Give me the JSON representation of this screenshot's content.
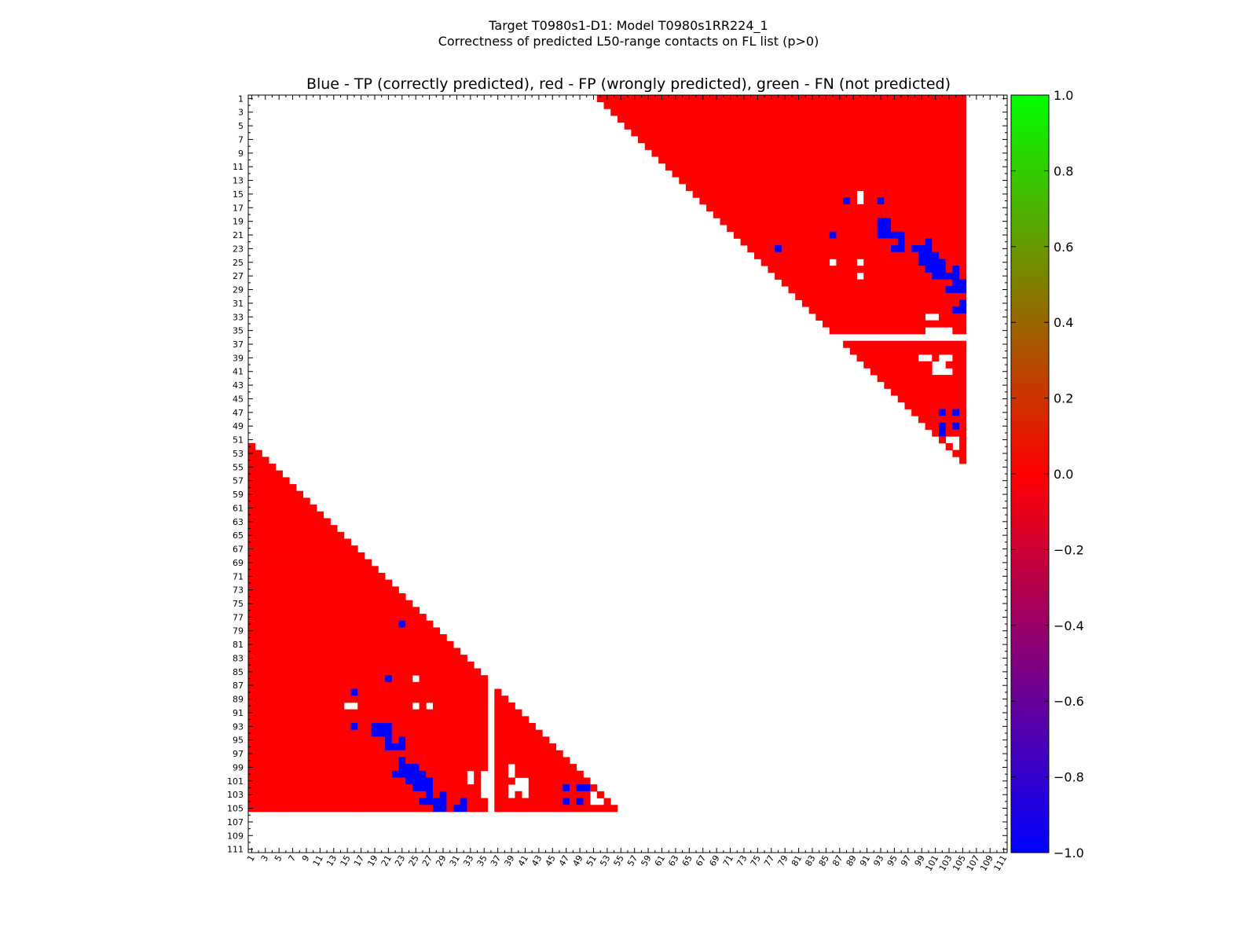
{
  "suptitle_line1": "Target T0980s1-D1: Model T0980s1RR224_1",
  "suptitle_line2": "Correctness of predicted L50-range contacts on FL list (p>0)",
  "chart_data": {
    "type": "heatmap",
    "title": "Blue - TP (correctly predicted), red - FP (wrongly predicted), green - FN (not predicted)",
    "xlabel": "",
    "ylabel": "",
    "grid": false,
    "legend": "colorbar right",
    "n_residues": 111,
    "x_ticks": [
      "1",
      "3",
      "5",
      "7",
      "9",
      "11",
      "13",
      "15",
      "17",
      "19",
      "21",
      "23",
      "25",
      "27",
      "29",
      "31",
      "33",
      "35",
      "37",
      "39",
      "41",
      "43",
      "45",
      "47",
      "49",
      "51",
      "53",
      "55",
      "57",
      "59",
      "61",
      "63",
      "65",
      "67",
      "69",
      "71",
      "73",
      "75",
      "77",
      "79",
      "81",
      "83",
      "85",
      "87",
      "89",
      "91",
      "93",
      "95",
      "97",
      "99",
      "101",
      "103",
      "105",
      "107",
      "109",
      "111"
    ],
    "y_ticks": [
      "1",
      "3",
      "5",
      "7",
      "9",
      "11",
      "13",
      "15",
      "17",
      "19",
      "21",
      "23",
      "25",
      "27",
      "29",
      "31",
      "33",
      "35",
      "37",
      "39",
      "41",
      "43",
      "45",
      "47",
      "49",
      "51",
      "53",
      "55",
      "57",
      "59",
      "61",
      "63",
      "65",
      "67",
      "69",
      "71",
      "73",
      "75",
      "77",
      "79",
      "81",
      "83",
      "85",
      "87",
      "89",
      "91",
      "93",
      "95",
      "97",
      "99",
      "101",
      "103",
      "105",
      "107",
      "109",
      "111"
    ],
    "colorbar": {
      "min": -1.0,
      "max": 1.0,
      "ticks": [
        "1.0",
        "0.8",
        "0.6",
        "0.4",
        "0.2",
        "0.0",
        "−0.2",
        "−0.4",
        "−0.6",
        "−0.8",
        "−1.0"
      ],
      "colors": {
        "tp": "#0000ff",
        "fp": "#ff0000",
        "fn": "#00ff00"
      }
    },
    "predicted_region": {
      "min_separation": 51,
      "max_residue": 105,
      "missing_residue": 36
    },
    "tp_contacts": [
      [
        16,
        88
      ],
      [
        16,
        93
      ],
      [
        21,
        86
      ],
      [
        19,
        93
      ],
      [
        19,
        94
      ],
      [
        20,
        93
      ],
      [
        20,
        94
      ],
      [
        21,
        93
      ],
      [
        21,
        94
      ],
      [
        21,
        95
      ],
      [
        21,
        96
      ],
      [
        22,
        96
      ],
      [
        23,
        95
      ],
      [
        23,
        96
      ],
      [
        23,
        78
      ],
      [
        23,
        98
      ],
      [
        23,
        99
      ],
      [
        23,
        100
      ],
      [
        22,
        100
      ],
      [
        24,
        99
      ],
      [
        24,
        100
      ],
      [
        24,
        101
      ],
      [
        25,
        99
      ],
      [
        25,
        100
      ],
      [
        25,
        101
      ],
      [
        25,
        102
      ],
      [
        26,
        100
      ],
      [
        26,
        101
      ],
      [
        26,
        102
      ],
      [
        26,
        104
      ],
      [
        27,
        101
      ],
      [
        27,
        102
      ],
      [
        27,
        103
      ],
      [
        27,
        104
      ],
      [
        28,
        104
      ],
      [
        28,
        105
      ],
      [
        29,
        103
      ],
      [
        29,
        104
      ],
      [
        29,
        105
      ],
      [
        31,
        105
      ],
      [
        32,
        104
      ],
      [
        32,
        105
      ],
      [
        47,
        102
      ],
      [
        47,
        104
      ],
      [
        49,
        102
      ],
      [
        49,
        104
      ],
      [
        50,
        102
      ]
    ],
    "unpredicted_gaps": [
      [
        15,
        90
      ],
      [
        16,
        90
      ],
      [
        25,
        86
      ],
      [
        25,
        90
      ],
      [
        27,
        90
      ],
      [
        33,
        100
      ],
      [
        33,
        101
      ],
      [
        35,
        100
      ],
      [
        35,
        101
      ],
      [
        35,
        102
      ],
      [
        35,
        103
      ],
      [
        39,
        99
      ],
      [
        39,
        100
      ],
      [
        39,
        102
      ],
      [
        39,
        103
      ],
      [
        40,
        101
      ],
      [
        40,
        102
      ],
      [
        41,
        101
      ],
      [
        41,
        102
      ],
      [
        41,
        103
      ],
      [
        51,
        103
      ],
      [
        51,
        104
      ],
      [
        52,
        104
      ]
    ]
  }
}
